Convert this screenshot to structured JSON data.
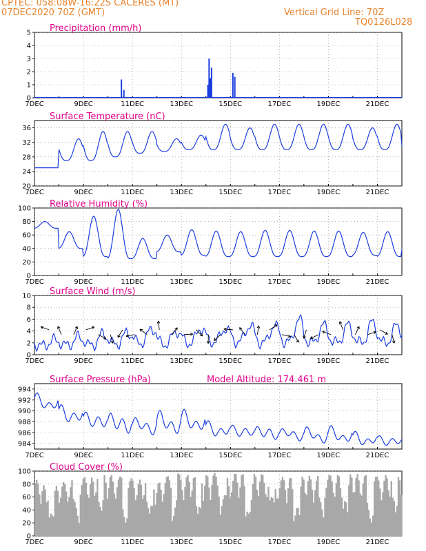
{
  "header": {
    "station": "CPTEC:   058:08W-16:22S   CACERES (MT)",
    "run": "07DEC2020 70Z (GMT)",
    "grid_note": "Vertical Grid Line: 70Z",
    "code": "TQ0126L028"
  },
  "colors": {
    "header": "#e8822a",
    "title": "#e0008a",
    "line": "#1a3de0",
    "arrow": "#000000",
    "cloud": "#a8a8a8"
  },
  "x_ticks": [
    "7DEC",
    "9DEC",
    "11DEC",
    "13DEC",
    "15DEC",
    "17DEC",
    "19DEC",
    "21DEC"
  ],
  "chart_data": [
    {
      "type": "bar",
      "title": "Precipitation (mm/h)",
      "ylim": [
        0,
        5
      ],
      "yticks": [
        "0",
        "1",
        "2",
        "3",
        "4",
        "5"
      ],
      "x_range_days": [
        7,
        22
      ],
      "points": [
        [
          10.55,
          1.4
        ],
        [
          10.65,
          0.6
        ],
        [
          14.08,
          1.0
        ],
        [
          14.13,
          3.0
        ],
        [
          14.18,
          1.5
        ],
        [
          14.23,
          2.3
        ],
        [
          15.1,
          1.9
        ],
        [
          15.18,
          1.6
        ]
      ]
    },
    {
      "type": "line",
      "title": "Surface Temperature (nC)",
      "ylim": [
        20,
        38
      ],
      "yticks": [
        "20",
        "24",
        "28",
        "32",
        "36"
      ],
      "min_base": [
        25,
        27,
        27,
        28,
        29,
        29.5,
        30,
        30,
        30,
        30,
        30,
        30,
        30,
        30,
        30,
        29
      ],
      "max_base": [
        25,
        33,
        35,
        35,
        35,
        33,
        34,
        37,
        36,
        37,
        37,
        37,
        37,
        36,
        37,
        33
      ]
    },
    {
      "type": "line",
      "title": "Relative Humidity (%)",
      "ylim": [
        0,
        100
      ],
      "yticks": [
        "0",
        "20",
        "40",
        "60",
        "80",
        "100"
      ],
      "min_base": [
        70,
        40,
        28,
        25,
        25,
        35,
        30,
        28,
        28,
        28,
        28,
        28,
        28,
        30,
        28,
        38
      ],
      "max_base": [
        80,
        65,
        88,
        98,
        55,
        60,
        68,
        66,
        65,
        67,
        67,
        66,
        66,
        64,
        65,
        68
      ]
    },
    {
      "type": "line",
      "title": "Surface Wind (m/s)",
      "ylim": [
        0,
        10
      ],
      "yticks": [
        "0",
        "2",
        "4",
        "6",
        "8",
        "10"
      ],
      "min_base": [
        1.5,
        1.6,
        1.6,
        1.8,
        2.0,
        1.8,
        2.0,
        2.2,
        2.2,
        2.0,
        2.0,
        2.0,
        2.0,
        2.0,
        2.0,
        2.0
      ],
      "max_base": [
        2.5,
        3.0,
        3.5,
        3.8,
        4.5,
        4.0,
        4.5,
        4.5,
        5.0,
        5.0,
        6.0,
        5.0,
        5.0,
        5.5,
        5.0,
        5.5
      ]
    },
    {
      "type": "line",
      "title": "Surface Pressure (hPa)",
      "annotation": "Model Altitude: 174.461  m",
      "ylim": [
        983,
        995
      ],
      "yticks": [
        "984",
        "986",
        "988",
        "990",
        "992",
        "994"
      ],
      "max_base": [
        993,
        991,
        990,
        990,
        989,
        990,
        990,
        988,
        987.5,
        987.5,
        987,
        987,
        987,
        986,
        985.5,
        985.5
      ],
      "min_base": [
        990,
        987.5,
        986.5,
        985.5,
        985.5,
        985.5,
        986,
        985,
        985,
        984.5,
        984.5,
        984,
        984,
        983.5,
        983.5,
        983.5
      ]
    },
    {
      "type": "area",
      "title": "Cloud Cover (%)",
      "ylim": [
        0,
        100
      ],
      "yticks": [
        "0",
        "20",
        "40",
        "60",
        "80",
        "100"
      ],
      "high_days": [
        7,
        7.6,
        8.6,
        9.3,
        10.0,
        12.0,
        12.6,
        13.6,
        14.4,
        16.4,
        16.8,
        19.3,
        20.1,
        21.0,
        21.5,
        22.0
      ],
      "high_level": [
        88,
        72,
        92,
        90,
        95,
        82,
        98,
        92,
        98,
        96,
        90,
        95,
        96,
        92,
        95,
        90
      ]
    }
  ]
}
